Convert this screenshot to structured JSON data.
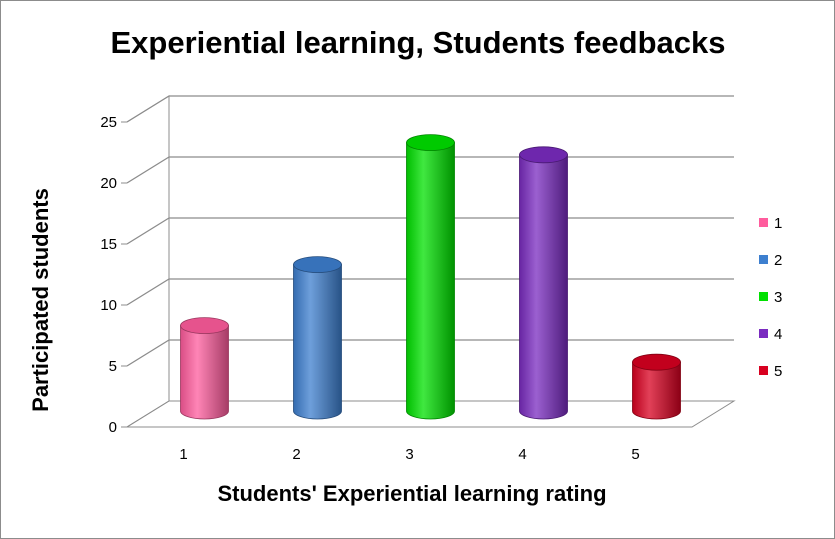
{
  "chart_data": {
    "type": "bar",
    "title": "Experiential learning, Students feedbacks",
    "xlabel": "Students' Experiential learning rating",
    "ylabel": "Participated students",
    "categories": [
      "1",
      "2",
      "3",
      "4",
      "5"
    ],
    "values": [
      7,
      12,
      22,
      21,
      4
    ],
    "ylim": [
      0,
      25
    ],
    "yticks": [
      "0",
      "5",
      "10",
      "15",
      "20",
      "25"
    ],
    "grid": true,
    "legend_position": "right",
    "legend": [
      "1",
      "2",
      "3",
      "4",
      "5"
    ],
    "colors": [
      "#ff5c9d",
      "#3d7fcf",
      "#00e000",
      "#7a2bc0",
      "#d80020"
    ]
  }
}
